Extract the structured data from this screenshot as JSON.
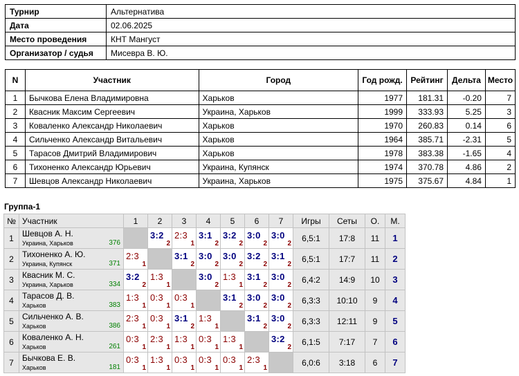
{
  "info": [
    {
      "label": "Турнир",
      "value": "Альтернатива"
    },
    {
      "label": "Дата",
      "value": "02.06.2025"
    },
    {
      "label": "Место проведения",
      "value": "КНТ Мангуст"
    },
    {
      "label": "Организатор / судья",
      "value": "Мисевра В. Ю."
    }
  ],
  "participants": {
    "headers": {
      "n": "N",
      "name": "Участник",
      "city": "Город",
      "year": "Год рожд.",
      "rating": "Рейтинг",
      "delta": "Дельта",
      "place": "Место"
    },
    "rows": [
      {
        "n": "1",
        "name": "Бычкова Елена Владимировна",
        "city": "Харьков",
        "year": "1977",
        "rating": "181.31",
        "delta": "-0.20",
        "place": "7"
      },
      {
        "n": "2",
        "name": "Квасник Максим Сергеевич",
        "city": "Украина, Харьков",
        "year": "1999",
        "rating": "333.93",
        "delta": "5.25",
        "place": "3"
      },
      {
        "n": "3",
        "name": "Коваленко Александр Николаевич",
        "city": "Харьков",
        "year": "1970",
        "rating": "260.83",
        "delta": "0.14",
        "place": "6"
      },
      {
        "n": "4",
        "name": "Сильченко Александр Витальевич",
        "city": "Харьков",
        "year": "1964",
        "rating": "385.71",
        "delta": "-2.31",
        "place": "5"
      },
      {
        "n": "5",
        "name": "Тарасов Дмитрий Владимирович",
        "city": "Харьков",
        "year": "1978",
        "rating": "383.38",
        "delta": "-1.65",
        "place": "4"
      },
      {
        "n": "6",
        "name": "Тихоненко Александр Юрьевич",
        "city": "Украина, Купянск",
        "year": "1974",
        "rating": "370.78",
        "delta": "4.86",
        "place": "2"
      },
      {
        "n": "7",
        "name": "Шевцов Александр Николаевич",
        "city": "Украина, Харьков",
        "year": "1975",
        "rating": "375.67",
        "delta": "4.84",
        "place": "1"
      }
    ]
  },
  "group": {
    "title": "Группа-1",
    "headers": {
      "n": "№",
      "name": "Участник",
      "cols": [
        "1",
        "2",
        "3",
        "4",
        "5",
        "6",
        "7"
      ],
      "games": "Игры",
      "sets": "Сеты",
      "points": "О.",
      "place": "М."
    },
    "rows": [
      {
        "n": "1",
        "name": "Шевцов А. Н.",
        "city": "Украина, Харьков",
        "rating": "376",
        "cells": [
          null,
          {
            "s": "3:2",
            "p": "2"
          },
          {
            "s": "2:3",
            "p": "1"
          },
          {
            "s": "3:1",
            "p": "2"
          },
          {
            "s": "3:2",
            "p": "2"
          },
          {
            "s": "3:0",
            "p": "2"
          },
          {
            "s": "3:0",
            "p": "2"
          }
        ],
        "games": "6,5:1",
        "sets": "17:8",
        "points": "11",
        "place": "1"
      },
      {
        "n": "2",
        "name": "Тихоненко А. Ю.",
        "city": "Украина, Купянск",
        "rating": "371",
        "cells": [
          {
            "s": "2:3",
            "p": "1"
          },
          null,
          {
            "s": "3:1",
            "p": "2"
          },
          {
            "s": "3:0",
            "p": "2"
          },
          {
            "s": "3:0",
            "p": "2"
          },
          {
            "s": "3:2",
            "p": "2"
          },
          {
            "s": "3:1",
            "p": "2"
          }
        ],
        "games": "6,5:1",
        "sets": "17:7",
        "points": "11",
        "place": "2"
      },
      {
        "n": "3",
        "name": "Квасник М. С.",
        "city": "Украина, Харьков",
        "rating": "334",
        "cells": [
          {
            "s": "3:2",
            "p": "2"
          },
          {
            "s": "1:3",
            "p": "1"
          },
          null,
          {
            "s": "3:0",
            "p": "2"
          },
          {
            "s": "1:3",
            "p": "1"
          },
          {
            "s": "3:1",
            "p": "2"
          },
          {
            "s": "3:0",
            "p": "2"
          }
        ],
        "games": "6,4:2",
        "sets": "14:9",
        "points": "10",
        "place": "3"
      },
      {
        "n": "4",
        "name": "Тарасов Д. В.",
        "city": "Харьков",
        "rating": "383",
        "cells": [
          {
            "s": "1:3",
            "p": "1"
          },
          {
            "s": "0:3",
            "p": "1"
          },
          {
            "s": "0:3",
            "p": "1"
          },
          null,
          {
            "s": "3:1",
            "p": "2"
          },
          {
            "s": "3:0",
            "p": "2"
          },
          {
            "s": "3:0",
            "p": "2"
          }
        ],
        "games": "6,3:3",
        "sets": "10:10",
        "points": "9",
        "place": "4"
      },
      {
        "n": "5",
        "name": "Сильченко А. В.",
        "city": "Харьков",
        "rating": "386",
        "cells": [
          {
            "s": "2:3",
            "p": "1"
          },
          {
            "s": "0:3",
            "p": "1"
          },
          {
            "s": "3:1",
            "p": "2"
          },
          {
            "s": "1:3",
            "p": "1"
          },
          null,
          {
            "s": "3:1",
            "p": "2"
          },
          {
            "s": "3:0",
            "p": "2"
          }
        ],
        "games": "6,3:3",
        "sets": "12:11",
        "points": "9",
        "place": "5"
      },
      {
        "n": "6",
        "name": "Коваленко А. Н.",
        "city": "Харьков",
        "rating": "261",
        "cells": [
          {
            "s": "0:3",
            "p": "1"
          },
          {
            "s": "2:3",
            "p": "1"
          },
          {
            "s": "1:3",
            "p": "1"
          },
          {
            "s": "0:3",
            "p": "1"
          },
          {
            "s": "1:3",
            "p": "1"
          },
          null,
          {
            "s": "3:2",
            "p": "2"
          }
        ],
        "games": "6,1:5",
        "sets": "7:17",
        "points": "7",
        "place": "6"
      },
      {
        "n": "7",
        "name": "Бычкова Е. В.",
        "city": "Харьков",
        "rating": "181",
        "cells": [
          {
            "s": "0:3",
            "p": "1"
          },
          {
            "s": "1:3",
            "p": "1"
          },
          {
            "s": "0:3",
            "p": "1"
          },
          {
            "s": "0:3",
            "p": "1"
          },
          {
            "s": "0:3",
            "p": "1"
          },
          {
            "s": "2:3",
            "p": "1"
          },
          null
        ],
        "games": "6,0:6",
        "sets": "3:18",
        "points": "6",
        "place": "7"
      }
    ]
  }
}
